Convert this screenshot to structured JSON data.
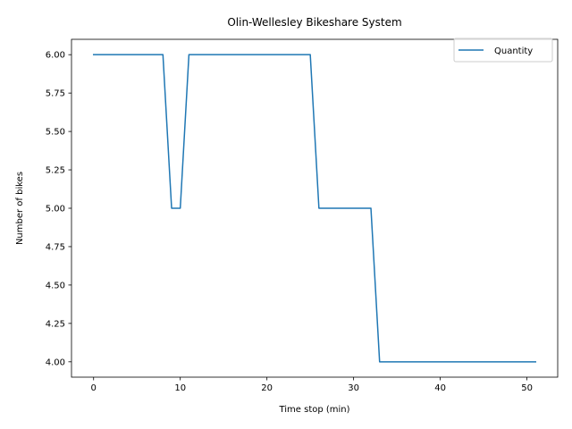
{
  "chart_data": {
    "type": "line",
    "title": "Olin-Wellesley Bikeshare System",
    "xlabel": "Time stop (min)",
    "ylabel": "Number of bikes",
    "xlim": [
      -2.55,
      53.55
    ],
    "ylim": [
      3.9,
      6.1
    ],
    "xticks": [
      0,
      10,
      20,
      30,
      40,
      50
    ],
    "xtick_labels": [
      "0",
      "10",
      "20",
      "30",
      "40",
      "50"
    ],
    "yticks": [
      4.0,
      4.25,
      4.5,
      4.75,
      5.0,
      5.25,
      5.5,
      5.75,
      6.0
    ],
    "ytick_labels": [
      "4.00",
      "4.25",
      "4.50",
      "4.75",
      "5.00",
      "5.25",
      "5.50",
      "5.75",
      "6.00"
    ],
    "grid": false,
    "legend_position": "upper-right",
    "series": [
      {
        "name": "Quantity",
        "color": "#1f77b4",
        "x": [
          0,
          1,
          2,
          3,
          4,
          5,
          6,
          7,
          8,
          9,
          10,
          11,
          12,
          13,
          14,
          15,
          16,
          17,
          18,
          19,
          20,
          21,
          22,
          23,
          24,
          25,
          26,
          27,
          28,
          29,
          30,
          31,
          32,
          33,
          34,
          35,
          36,
          37,
          38,
          39,
          40,
          41,
          42,
          43,
          44,
          45,
          46,
          47,
          48,
          49,
          50,
          51
        ],
        "values": [
          6,
          6,
          6,
          6,
          6,
          6,
          6,
          6,
          6,
          5,
          5,
          6,
          6,
          6,
          6,
          6,
          6,
          6,
          6,
          6,
          6,
          6,
          6,
          6,
          6,
          6,
          5,
          5,
          5,
          5,
          5,
          5,
          5,
          4,
          4,
          4,
          4,
          4,
          4,
          4,
          4,
          4,
          4,
          4,
          4,
          4,
          4,
          4,
          4,
          4,
          4,
          4
        ]
      }
    ]
  }
}
